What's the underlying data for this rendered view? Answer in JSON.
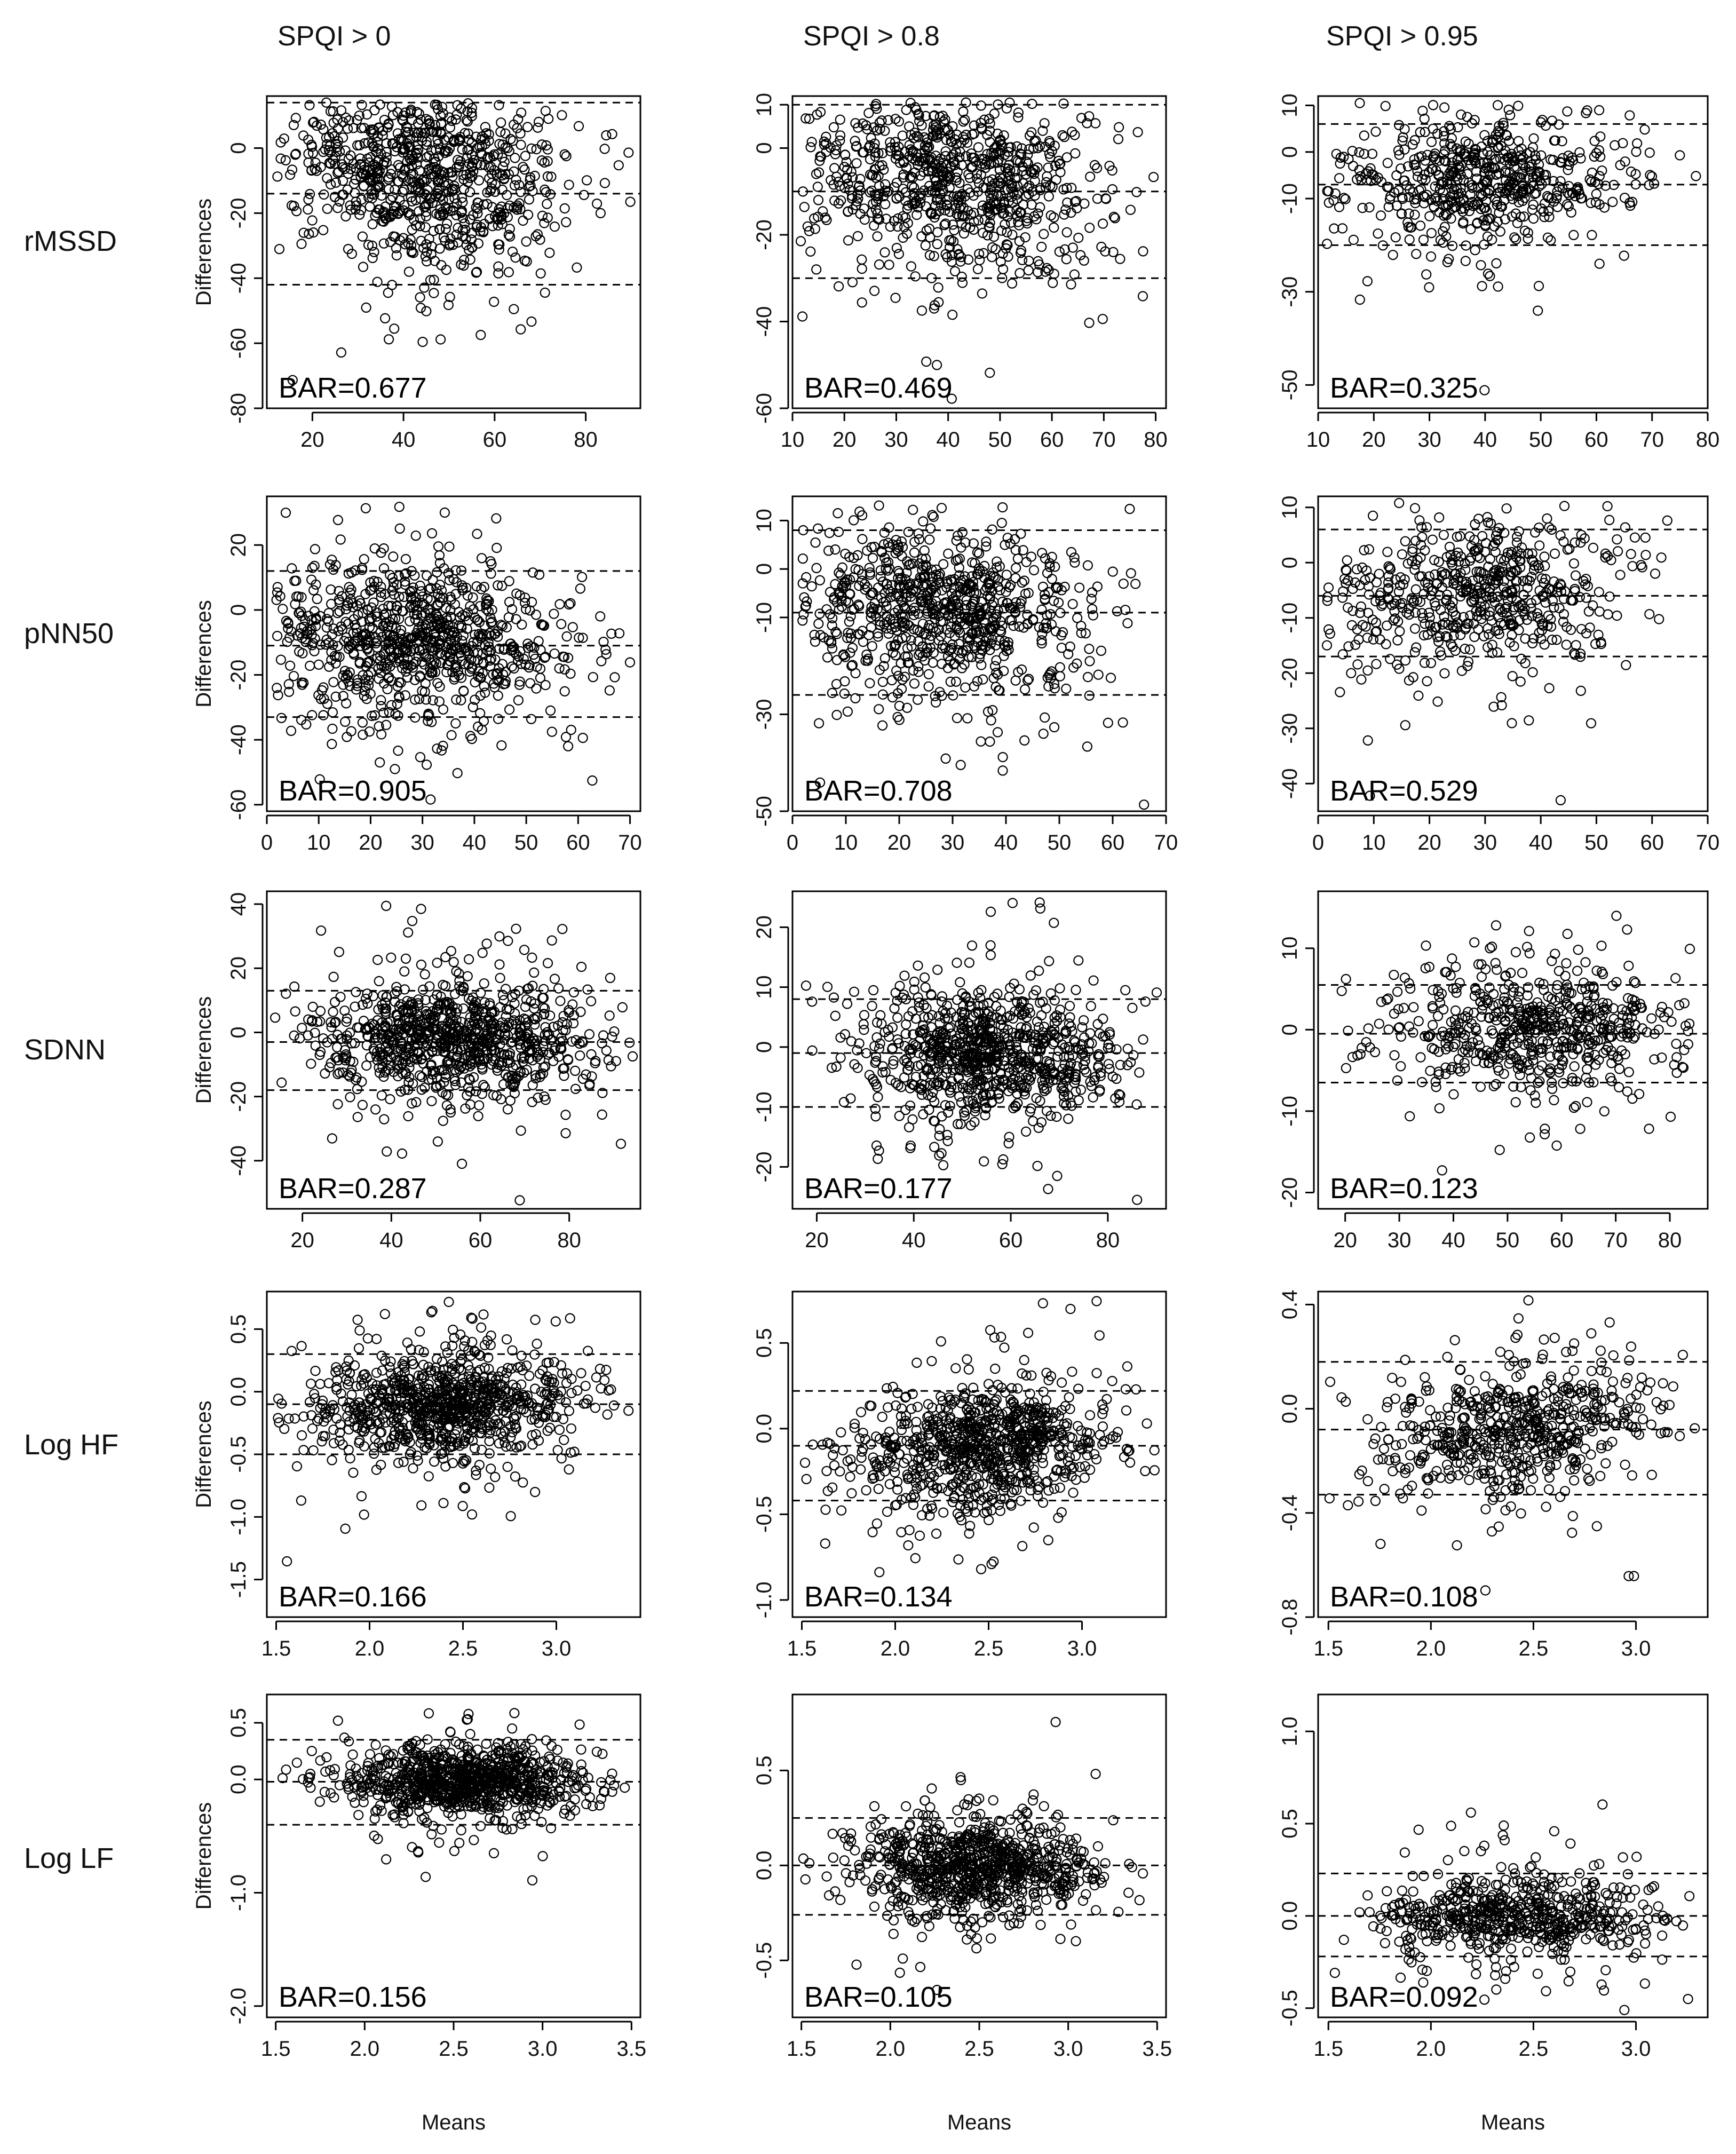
{
  "columns": [
    "SPQI  > 0",
    "SPQI > 0.8",
    "SPQI > 0.95"
  ],
  "rows": [
    "rMSSD",
    "pNN50",
    "SDNN",
    "Log HF",
    "Log LF"
  ],
  "chart_data": [
    {
      "type": "scatter",
      "row": 0,
      "col": 0,
      "ylabel": "Differences",
      "xlabel": "",
      "bar": "BAR=0.677",
      "xlim": [
        10,
        92
      ],
      "ylim": [
        -80,
        16
      ],
      "xticks": [
        20,
        40,
        60,
        80
      ],
      "yticks": [
        0,
        -20,
        -40,
        -60,
        -80
      ],
      "hlines": [
        14,
        -14,
        -42
      ],
      "x_center": 45,
      "x_spread": 16,
      "y_mean": -6,
      "y_spread": 14,
      "n": 900,
      "slope": -0.15
    },
    {
      "type": "scatter",
      "row": 0,
      "col": 1,
      "ylabel": "",
      "xlabel": "",
      "bar": "BAR=0.469",
      "xlim": [
        10,
        82
      ],
      "ylim": [
        -60,
        12
      ],
      "xticks": [
        10,
        20,
        30,
        40,
        50,
        60,
        70,
        80
      ],
      "yticks": [
        10,
        0,
        -20,
        -40,
        -60
      ],
      "hlines": [
        10,
        -10,
        -30
      ],
      "x_center": 42,
      "x_spread": 15,
      "y_mean": -7,
      "y_spread": 10,
      "n": 850,
      "slope": -0.08
    },
    {
      "type": "scatter",
      "row": 0,
      "col": 2,
      "ylabel": "",
      "xlabel": "",
      "bar": "BAR=0.325",
      "xlim": [
        10,
        80
      ],
      "ylim": [
        -55,
        12
      ],
      "xticks": [
        10,
        20,
        30,
        40,
        50,
        60,
        70,
        80
      ],
      "yticks": [
        10,
        0,
        -10,
        -30,
        -50
      ],
      "hlines": [
        6,
        -7,
        -20
      ],
      "x_center": 40,
      "x_spread": 13,
      "y_mean": -6,
      "y_spread": 6,
      "n": 600,
      "slope": 0.05
    },
    {
      "type": "scatter",
      "row": 1,
      "col": 0,
      "ylabel": "Differences",
      "xlabel": "",
      "bar": "BAR=0.905",
      "xlim": [
        0,
        72
      ],
      "ylim": [
        -62,
        35
      ],
      "xticks": [
        0,
        10,
        20,
        30,
        40,
        50,
        60,
        70
      ],
      "yticks": [
        20,
        0,
        -20,
        -40,
        -60
      ],
      "hlines": [
        12,
        -11,
        -33
      ],
      "x_center": 28,
      "x_spread": 15,
      "y_mean": -9,
      "y_spread": 11,
      "n": 900,
      "slope": -0.1
    },
    {
      "type": "scatter",
      "row": 1,
      "col": 1,
      "ylabel": "",
      "xlabel": "",
      "bar": "BAR=0.708",
      "xlim": [
        0,
        70
      ],
      "ylim": [
        -50,
        15
      ],
      "xticks": [
        0,
        10,
        20,
        30,
        40,
        50,
        60,
        70
      ],
      "yticks": [
        10,
        0,
        -10,
        -30,
        -50
      ],
      "hlines": [
        8,
        -9,
        -26
      ],
      "x_center": 27,
      "x_spread": 15,
      "y_mean": -8,
      "y_spread": 8,
      "n": 850,
      "slope": -0.05
    },
    {
      "type": "scatter",
      "row": 1,
      "col": 2,
      "ylabel": "",
      "xlabel": "",
      "bar": "BAR=0.529",
      "xlim": [
        0,
        70
      ],
      "ylim": [
        -45,
        12
      ],
      "xticks": [
        0,
        10,
        20,
        30,
        40,
        50,
        60,
        70
      ],
      "yticks": [
        10,
        0,
        -10,
        -20,
        -30,
        -40
      ],
      "hlines": [
        6,
        -6,
        -17
      ],
      "x_center": 28,
      "x_spread": 14,
      "y_mean": -6,
      "y_spread": 6,
      "n": 600,
      "slope": 0.05
    },
    {
      "type": "scatter",
      "row": 2,
      "col": 0,
      "ylabel": "Differences",
      "xlabel": "",
      "bar": "BAR=0.287",
      "xlim": [
        12,
        96
      ],
      "ylim": [
        -55,
        44
      ],
      "xticks": [
        20,
        40,
        60,
        80
      ],
      "yticks": [
        40,
        20,
        0,
        -20,
        -40
      ],
      "hlines": [
        13,
        -3,
        -18
      ],
      "x_center": 55,
      "x_spread": 16,
      "y_mean": -2,
      "y_spread": 8,
      "n": 900,
      "slope": 0
    },
    {
      "type": "scatter",
      "row": 2,
      "col": 1,
      "ylabel": "",
      "xlabel": "",
      "bar": "BAR=0.177",
      "xlim": [
        15,
        92
      ],
      "ylim": [
        -27,
        26
      ],
      "xticks": [
        20,
        40,
        60,
        80
      ],
      "yticks": [
        20,
        10,
        0,
        -10,
        -20
      ],
      "hlines": [
        8,
        -1,
        -10
      ],
      "x_center": 56,
      "x_spread": 14,
      "y_mean": -1,
      "y_spread": 5,
      "n": 850,
      "slope": 0
    },
    {
      "type": "scatter",
      "row": 2,
      "col": 2,
      "ylabel": "",
      "xlabel": "",
      "bar": "BAR=0.123",
      "xlim": [
        15,
        87
      ],
      "ylim": [
        -22,
        17
      ],
      "xticks": [
        20,
        30,
        40,
        50,
        60,
        70,
        80
      ],
      "yticks": [
        10,
        0,
        -10,
        -20
      ],
      "hlines": [
        5.5,
        -0.5,
        -6.5
      ],
      "x_center": 55,
      "x_spread": 14,
      "y_mean": 0,
      "y_spread": 3.5,
      "n": 600,
      "slope": 0
    },
    {
      "type": "scatter",
      "row": 3,
      "col": 0,
      "ylabel": "Differences",
      "xlabel": "",
      "bar": "BAR=0.166",
      "xlim": [
        1.45,
        3.45
      ],
      "ylim": [
        -1.8,
        0.8
      ],
      "xticks": [
        1.5,
        2.0,
        2.5,
        3.0
      ],
      "yticks": [
        0.5,
        0.0,
        -0.5,
        -1.0,
        -1.5
      ],
      "hlines": [
        0.3,
        -0.1,
        -0.5
      ],
      "x_center": 2.4,
      "x_spread": 0.35,
      "y_mean": -0.1,
      "y_spread": 0.2,
      "n": 900,
      "slope": 0.1
    },
    {
      "type": "scatter",
      "row": 3,
      "col": 1,
      "ylabel": "",
      "xlabel": "",
      "bar": "BAR=0.134",
      "xlim": [
        1.45,
        3.45
      ],
      "ylim": [
        -1.1,
        0.8
      ],
      "xticks": [
        1.5,
        2.0,
        2.5,
        3.0
      ],
      "yticks": [
        0.5,
        0.0,
        -0.5,
        -1.0
      ],
      "hlines": [
        0.22,
        -0.1,
        -0.42
      ],
      "x_center": 2.45,
      "x_spread": 0.35,
      "y_mean": -0.1,
      "y_spread": 0.16,
      "n": 850,
      "slope": 0.1
    },
    {
      "type": "scatter",
      "row": 3,
      "col": 2,
      "ylabel": "",
      "xlabel": "",
      "bar": "BAR=0.108",
      "xlim": [
        1.45,
        3.35
      ],
      "ylim": [
        -0.8,
        0.45
      ],
      "xticks": [
        1.5,
        2.0,
        2.5,
        3.0
      ],
      "yticks": [
        0.4,
        0.0,
        -0.4,
        -0.8
      ],
      "hlines": [
        0.18,
        -0.08,
        -0.33
      ],
      "x_center": 2.4,
      "x_spread": 0.35,
      "y_mean": -0.08,
      "y_spread": 0.12,
      "n": 600,
      "slope": 0.1
    },
    {
      "type": "scatter",
      "row": 4,
      "col": 0,
      "ylabel": "Differences",
      "xlabel": "Means",
      "bar": "BAR=0.156",
      "xlim": [
        1.45,
        3.55
      ],
      "ylim": [
        -2.1,
        0.75
      ],
      "xticks": [
        1.5,
        2.0,
        2.5,
        3.0,
        3.5
      ],
      "yticks": [
        0.5,
        0.0,
        -1.0,
        -2.0
      ],
      "hlines": [
        0.35,
        -0.02,
        -0.4
      ],
      "x_center": 2.55,
      "x_spread": 0.35,
      "y_mean": -0.02,
      "y_spread": 0.15,
      "n": 900,
      "slope": 0
    },
    {
      "type": "scatter",
      "row": 4,
      "col": 1,
      "ylabel": "",
      "xlabel": "Means",
      "bar": "BAR=0.105",
      "xlim": [
        1.45,
        3.55
      ],
      "ylim": [
        -0.8,
        0.9
      ],
      "xticks": [
        1.5,
        2.0,
        2.5,
        3.0,
        3.5
      ],
      "yticks": [
        0.5,
        0.0,
        -0.5
      ],
      "hlines": [
        0.25,
        0.0,
        -0.26
      ],
      "x_center": 2.5,
      "x_spread": 0.35,
      "y_mean": 0,
      "y_spread": 0.12,
      "n": 850,
      "slope": 0
    },
    {
      "type": "scatter",
      "row": 4,
      "col": 2,
      "ylabel": "",
      "xlabel": "Means",
      "bar": "BAR=0.092",
      "xlim": [
        1.45,
        3.35
      ],
      "ylim": [
        -0.55,
        1.2
      ],
      "xticks": [
        1.5,
        2.0,
        2.5,
        3.0
      ],
      "yticks": [
        1.0,
        0.5,
        0.0,
        -0.5
      ],
      "hlines": [
        0.23,
        0.0,
        -0.22
      ],
      "x_center": 2.4,
      "x_spread": 0.35,
      "y_mean": 0,
      "y_spread": 0.1,
      "n": 600,
      "slope": 0
    }
  ]
}
